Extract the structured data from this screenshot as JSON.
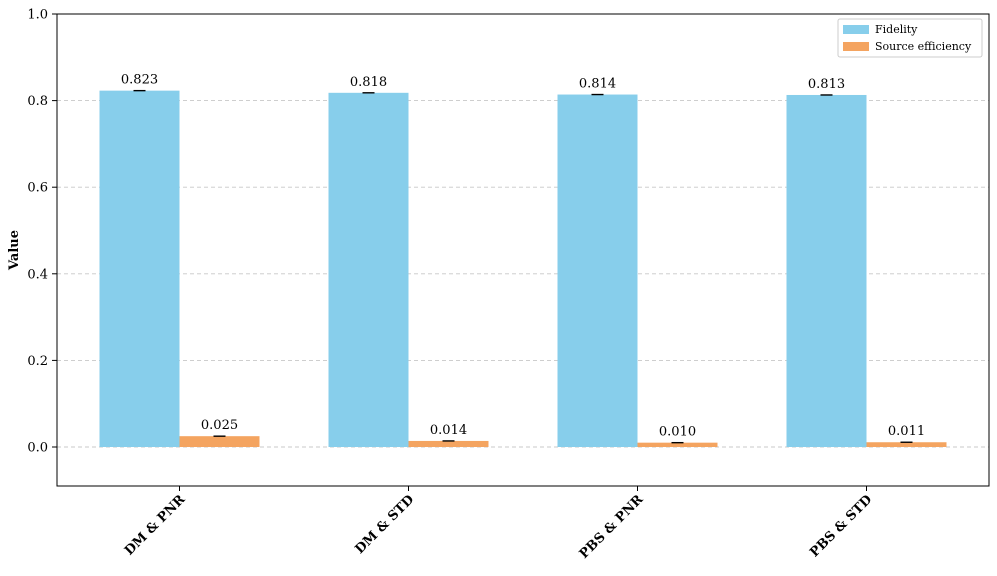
{
  "chart_data": {
    "type": "bar",
    "categories": [
      "DM & PNR",
      "DM & STD",
      "PBS & PNR",
      "PBS & STD"
    ],
    "series": [
      {
        "name": "Fidelity",
        "values": [
          0.823,
          0.818,
          0.814,
          0.813
        ],
        "labels": [
          "0.823",
          "0.818",
          "0.814",
          "0.813"
        ],
        "color": "#87CEEB"
      },
      {
        "name": "Source efficiency",
        "values": [
          0.025,
          0.014,
          0.01,
          0.011
        ],
        "labels": [
          "0.025",
          "0.014",
          "0.010",
          "0.011"
        ],
        "color": "#F4A460"
      }
    ],
    "ylabel": "Value",
    "xlabel": "",
    "title": "",
    "ylim": [
      -0.09,
      1.0
    ],
    "yticks": [
      "0.0",
      "0.2",
      "0.4",
      "0.6",
      "0.8",
      "1.0"
    ],
    "grid": "y-dashed",
    "legend_position": "top-right",
    "error_bars": true
  }
}
